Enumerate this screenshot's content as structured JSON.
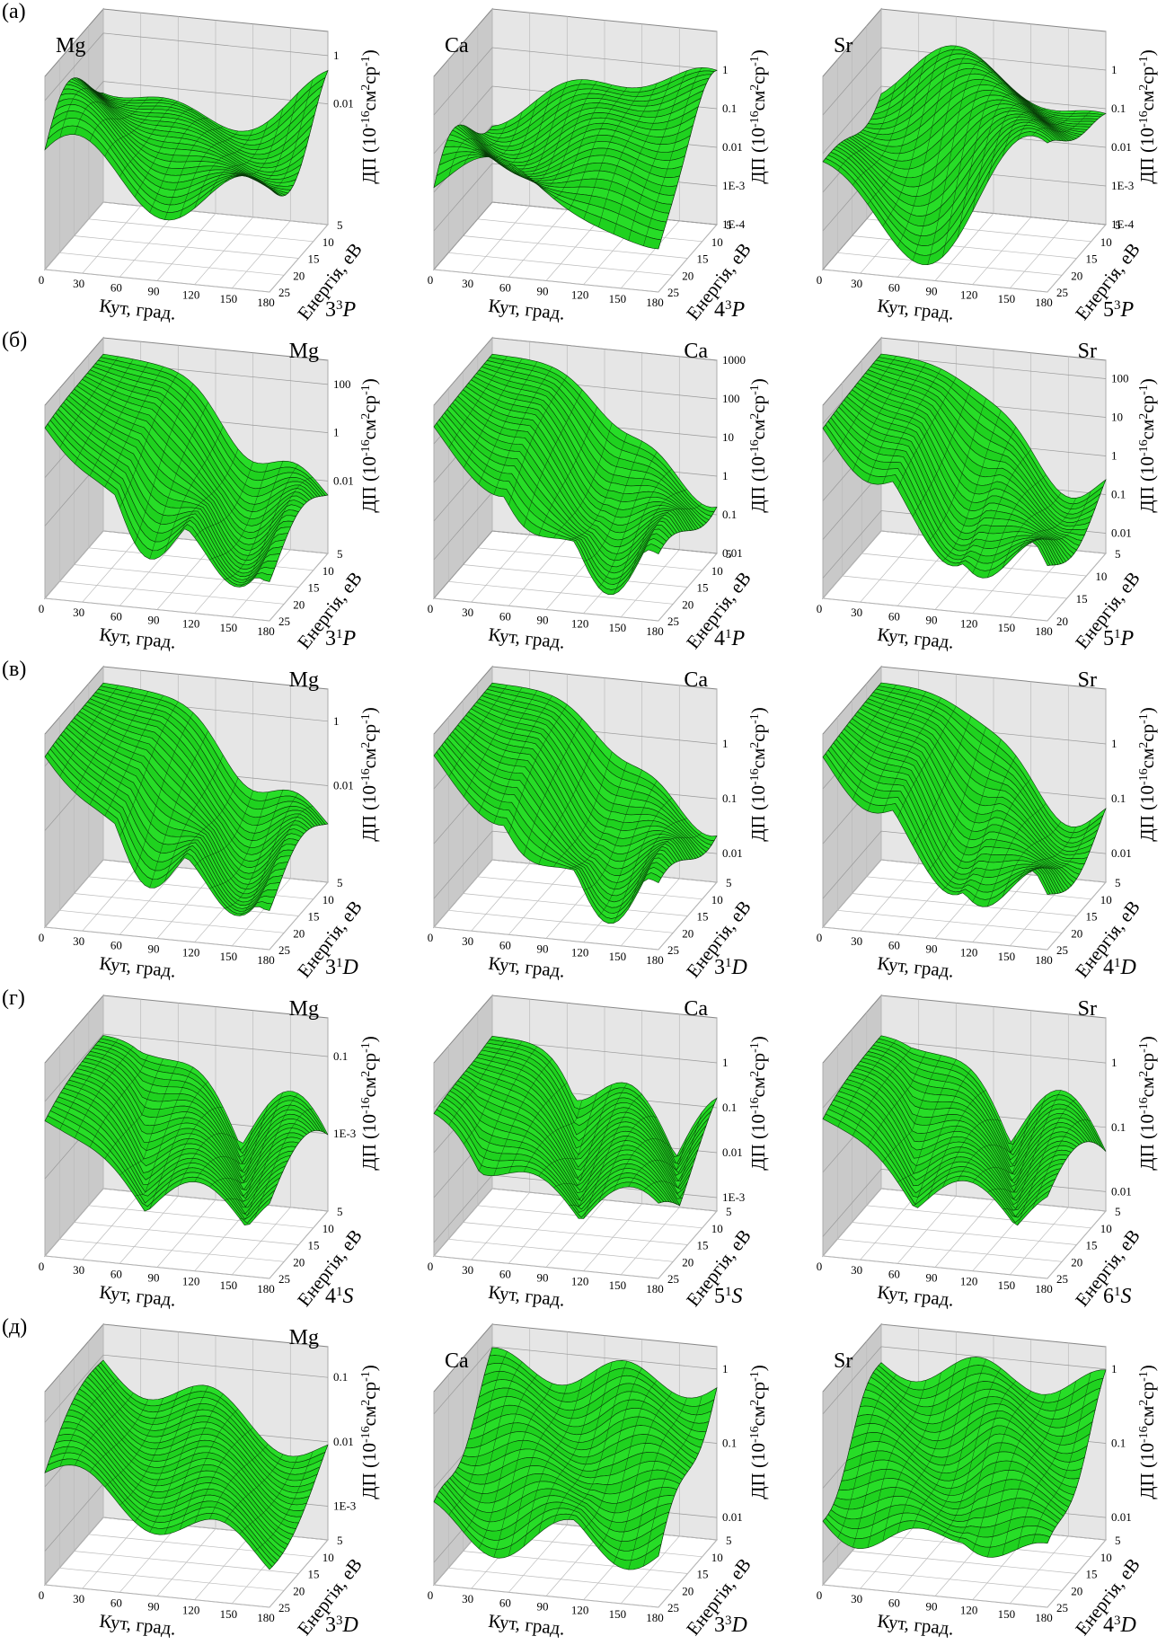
{
  "figure": {
    "axis_labels": {
      "angle": "Кут, град.",
      "energy": "Енергія, eB",
      "dcs": [
        "ДП (10",
        "-16",
        "см",
        "2",
        "ср",
        "-1",
        ")"
      ]
    },
    "angle_lim": [
      0,
      180
    ],
    "angle_ticks": [
      0,
      30,
      60,
      90,
      120,
      150,
      180
    ],
    "z_scale": "log",
    "rows": [
      {
        "label": "(а)",
        "panels": [
          {
            "element": "Mg",
            "state": [
              "3",
              "3",
              "P"
            ],
            "energy_lim": [
              5,
              25
            ],
            "energy_ticks": [
              5,
              10,
              15,
              20,
              25
            ],
            "zlim": [
              1e-07,
              10
            ],
            "zticks": [
              1,
              0.01
            ]
          },
          {
            "element": "Ca",
            "state": [
              "4",
              "3",
              "P"
            ],
            "energy_lim": [
              5,
              25
            ],
            "energy_ticks": [
              5,
              10,
              15,
              20,
              25
            ],
            "zlim": [
              0.0001,
              10
            ],
            "zticks": [
              1,
              0.1,
              0.01,
              {
                "value": 0.001,
                "label": "1E-3"
              },
              {
                "value": 0.0001,
                "label": "1E-4"
              }
            ]
          },
          {
            "element": "Sr",
            "state": [
              "5",
              "3",
              "P"
            ],
            "energy_lim": [
              5,
              25
            ],
            "energy_ticks": [
              5,
              10,
              15,
              20,
              25
            ],
            "zlim": [
              0.0001,
              10
            ],
            "zticks": [
              1,
              0.1,
              0.01,
              {
                "value": 0.001,
                "label": "1E-3"
              },
              {
                "value": 0.0001,
                "label": "1E-4"
              }
            ]
          }
        ]
      },
      {
        "label": "(б)",
        "panels": [
          {
            "element": "Mg",
            "state": [
              "3",
              "1",
              "P"
            ],
            "energy_lim": [
              5,
              25
            ],
            "energy_ticks": [
              5,
              10,
              15,
              20,
              25
            ],
            "zlim": [
              1e-05,
              1000
            ],
            "zticks": [
              100,
              1,
              0.01
            ]
          },
          {
            "element": "Ca",
            "state": [
              "4",
              "1",
              "P"
            ],
            "energy_lim": [
              5,
              25
            ],
            "energy_ticks": [
              5,
              10,
              15,
              20,
              25
            ],
            "zlim": [
              0.01,
              1000
            ],
            "zticks": [
              1000,
              100,
              10,
              1,
              0.1,
              0.01
            ]
          },
          {
            "element": "Sr",
            "state": [
              "5",
              "1",
              "P"
            ],
            "energy_lim": [
              5,
              20
            ],
            "energy_ticks": [
              5,
              10,
              15,
              20
            ],
            "zlim": [
              0.003,
              300
            ],
            "zticks": [
              100,
              10,
              1,
              0.1,
              0.01
            ]
          }
        ]
      },
      {
        "label": "(в)",
        "panels": [
          {
            "element": "Mg",
            "state": [
              "3",
              "1",
              "D"
            ],
            "energy_lim": [
              5,
              25
            ],
            "energy_ticks": [
              5,
              10,
              15,
              20,
              25
            ],
            "zlim": [
              1e-05,
              10
            ],
            "zticks": [
              1,
              0.01
            ]
          },
          {
            "element": "Ca",
            "state": [
              "3",
              "1",
              "D"
            ],
            "energy_lim": [
              5,
              25
            ],
            "energy_ticks": [
              5,
              10,
              15,
              20,
              25
            ],
            "zlim": [
              0.003,
              10
            ],
            "zticks": [
              1,
              0.1,
              0.01
            ]
          },
          {
            "element": "Sr",
            "state": [
              "4",
              "1",
              "D"
            ],
            "energy_lim": [
              5,
              25
            ],
            "energy_ticks": [
              5,
              10,
              15,
              20,
              25
            ],
            "zlim": [
              0.003,
              10
            ],
            "zticks": [
              1,
              0.1,
              0.01
            ]
          }
        ]
      },
      {
        "label": "(г)",
        "panels": [
          {
            "element": "Mg",
            "state": [
              "4",
              "1",
              "S"
            ],
            "energy_lim": [
              5,
              25
            ],
            "energy_ticks": [
              5,
              10,
              15,
              20,
              25
            ],
            "zlim": [
              1e-05,
              1
            ],
            "zticks": [
              0.1,
              {
                "value": 0.001,
                "label": "1E-3"
              }
            ]
          },
          {
            "element": "Ca",
            "state": [
              "5",
              "1",
              "S"
            ],
            "energy_lim": [
              5,
              25
            ],
            "energy_ticks": [
              5,
              10,
              15,
              20,
              25
            ],
            "zlim": [
              0.0005,
              10
            ],
            "zticks": [
              1,
              0.1,
              0.01,
              {
                "value": 0.001,
                "label": "1E-3"
              }
            ]
          },
          {
            "element": "Sr",
            "state": [
              "6",
              "1",
              "S"
            ],
            "energy_lim": [
              5,
              25
            ],
            "energy_ticks": [
              5,
              10,
              15,
              20,
              25
            ],
            "zlim": [
              0.005,
              5
            ],
            "zticks": [
              1,
              0.1,
              0.01
            ]
          }
        ]
      },
      {
        "label": "(д)",
        "panels": [
          {
            "element": "Mg",
            "state": [
              "3",
              "3",
              "D"
            ],
            "energy_lim": [
              5,
              25
            ],
            "energy_ticks": [
              5,
              10,
              15,
              20,
              25
            ],
            "zlim": [
              0.0003,
              0.3
            ],
            "zticks": [
              0.1,
              0.01,
              {
                "value": 0.001,
                "label": "1E-3"
              }
            ]
          },
          {
            "element": "Ca",
            "state": [
              "3",
              "3",
              "D"
            ],
            "energy_lim": [
              5,
              25
            ],
            "energy_ticks": [
              5,
              10,
              15,
              20,
              25
            ],
            "zlim": [
              0.005,
              2
            ],
            "zticks": [
              1,
              0.1,
              0.01
            ]
          },
          {
            "element": "Sr",
            "state": [
              "4",
              "3",
              "D"
            ],
            "energy_lim": [
              5,
              25
            ],
            "energy_ticks": [
              5,
              10,
              15,
              20,
              25
            ],
            "zlim": [
              0.005,
              2
            ],
            "zticks": [
              1,
              0.1,
              0.01
            ]
          }
        ]
      }
    ]
  }
}
